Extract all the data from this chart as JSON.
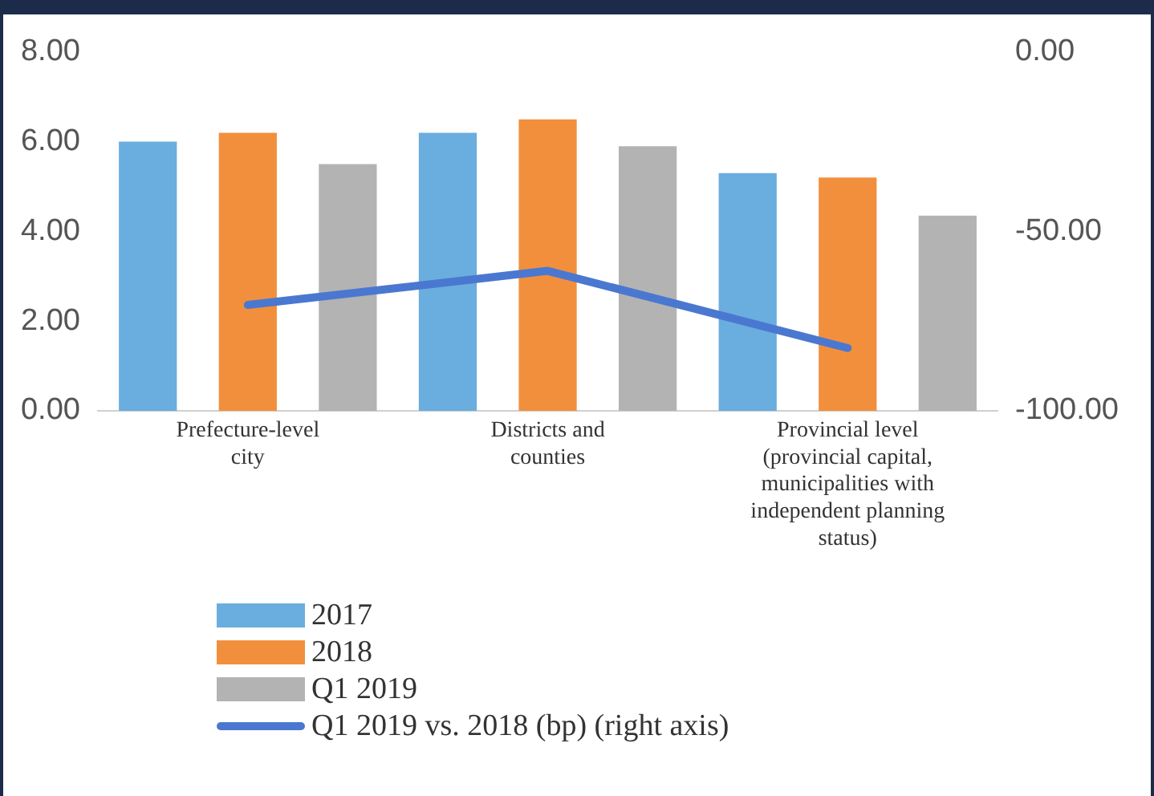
{
  "chart_data": {
    "type": "bar",
    "categories": [
      "Prefecture-level city",
      "Districts and counties",
      "Provincial level (provincial capital, municipalities with independent planning status)"
    ],
    "series": [
      {
        "name": "2017",
        "color": "#6aaddf",
        "values": [
          6.0,
          6.2,
          5.3
        ]
      },
      {
        "name": "2018",
        "color": "#f28f3d",
        "values": [
          6.2,
          6.5,
          5.2
        ]
      },
      {
        "name": "Q1 2019",
        "color": "#b3b3b3",
        "values": [
          5.5,
          5.9,
          4.35
        ]
      },
      {
        "name": "Q1 2019 vs. 2018 (bp) (right axis)",
        "type": "line",
        "axis": "y2",
        "color": "#4a78d0",
        "values": [
          -70.5,
          -61,
          -82.5
        ]
      }
    ],
    "ylim": [
      0,
      8
    ],
    "yticks": [
      {
        "value": 0,
        "label": "0.00"
      },
      {
        "value": 2,
        "label": "2.00"
      },
      {
        "value": 4,
        "label": "4.00"
      },
      {
        "value": 6,
        "label": "6.00"
      },
      {
        "value": 8,
        "label": "8.00"
      }
    ],
    "y2lim": [
      -100,
      0
    ],
    "y2ticks": [
      {
        "value": -100,
        "label": "-100.00"
      },
      {
        "value": -50,
        "label": "-50.00"
      },
      {
        "value": 0,
        "label": "0.00"
      }
    ],
    "grid": false,
    "legend": "bottom",
    "marker": "none"
  }
}
